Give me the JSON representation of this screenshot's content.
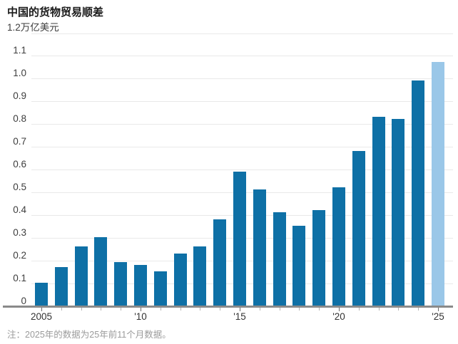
{
  "title": "中国的货物贸易顺差",
  "y_axis": {
    "unit_top_label": "1.2万亿美元",
    "tick_labels": [
      "1.1",
      "1.0",
      "0.9",
      "0.8",
      "0.7",
      "0.6",
      "0.5",
      "0.4",
      "0.3",
      "0.2",
      "0.1",
      "0"
    ]
  },
  "x_axis": {
    "tick_labels": [
      {
        "index": 0,
        "label": "2005"
      },
      {
        "index": 5,
        "label": "'10"
      },
      {
        "index": 10,
        "label": "'15"
      },
      {
        "index": 15,
        "label": "'20"
      },
      {
        "index": 20,
        "label": "'25"
      }
    ]
  },
  "footnote": "注：2025年的数据为25年前11个月数据。",
  "colors": {
    "bar": "#0e70a6",
    "bar_highlight": "#9ac7e8",
    "gridline": "#e9e9e9",
    "axis_line": "#8a8a8a",
    "minor_tick": "#b5b5b5",
    "major_tick": "#6b6b6b"
  },
  "chart_data": {
    "type": "bar",
    "title": "中国的货物贸易顺差",
    "ylabel": "万亿美元",
    "ylim": [
      0,
      1.2
    ],
    "ytick_interval": 0.1,
    "grid": "horizontal",
    "legend": "none",
    "categories": [
      "2005",
      "2006",
      "2007",
      "2008",
      "2009",
      "2010",
      "2011",
      "2012",
      "2013",
      "2014",
      "2015",
      "2016",
      "2017",
      "2018",
      "2019",
      "2020",
      "2021",
      "2022",
      "2023",
      "2024",
      "2025"
    ],
    "values": [
      0.1,
      0.17,
      0.26,
      0.3,
      0.19,
      0.18,
      0.15,
      0.23,
      0.26,
      0.38,
      0.59,
      0.51,
      0.41,
      0.35,
      0.42,
      0.52,
      0.68,
      0.83,
      0.82,
      0.99,
      1.07
    ],
    "highlight_category": "2025",
    "x_tick_labels_shown": [
      "2005",
      "'10",
      "'15",
      "'20",
      "'25"
    ]
  }
}
